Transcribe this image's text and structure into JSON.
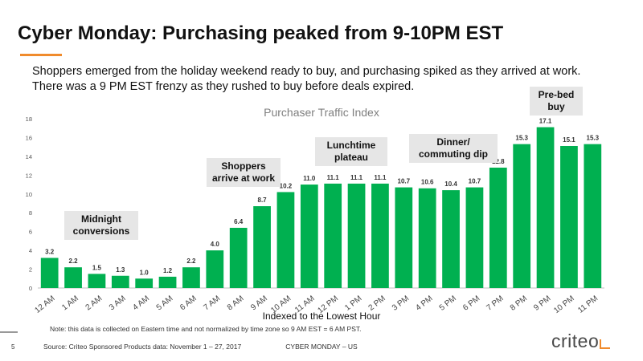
{
  "header": {
    "title": "Cyber Monday: Purchasing peaked from 9-10PM EST",
    "subtitle": "Shoppers emerged from the holiday weekend ready to buy, and purchasing spiked as they arrived at work. There was a 9 PM EST frenzy as they rushed to buy before deals expired."
  },
  "colors": {
    "bar": "#00b050",
    "accent": "#f08b2c",
    "callout_bg": "#e6e6e6"
  },
  "chart_data": {
    "type": "bar",
    "title": "Purchaser Traffic Index",
    "xlabel": "Indexed to the Lowest Hour",
    "ylabel": "",
    "ylim": [
      0,
      18
    ],
    "y_ticks": [
      0,
      2,
      4,
      6,
      8,
      10,
      12,
      14,
      16,
      18
    ],
    "grid": false,
    "categories": [
      "12 AM",
      "1 AM",
      "2 AM",
      "3 AM",
      "4 AM",
      "5 AM",
      "6 AM",
      "7 AM",
      "8 AM",
      "9 AM",
      "10 AM",
      "11 AM",
      "12 PM",
      "1 PM",
      "2 PM",
      "3 PM",
      "4 PM",
      "5 PM",
      "6 PM",
      "7 PM",
      "8 PM",
      "9 PM",
      "10 PM",
      "11 PM"
    ],
    "values": [
      3.2,
      2.2,
      1.5,
      1.3,
      1.0,
      1.2,
      2.2,
      4.0,
      6.4,
      8.7,
      10.2,
      11.0,
      11.1,
      11.1,
      11.1,
      10.7,
      10.6,
      10.4,
      10.7,
      12.8,
      15.3,
      17.1,
      15.1,
      15.3
    ],
    "annotations": [
      "Midnight\nconversions",
      "Shoppers\narrive at work",
      "Lunchtime\nplateau",
      "Dinner/\ncommuting dip",
      "Pre-bed\nbuy"
    ]
  },
  "footer": {
    "note": "Note: this data is collected on Eastern time and not normalized by time zone so 9 AM EST = 6 AM PST.",
    "page_number": "5",
    "source": "Source: Criteo Sponsored Products data: November 1 – 27, 2017",
    "center": "CYBER MONDAY – US",
    "logo": "criteo"
  }
}
